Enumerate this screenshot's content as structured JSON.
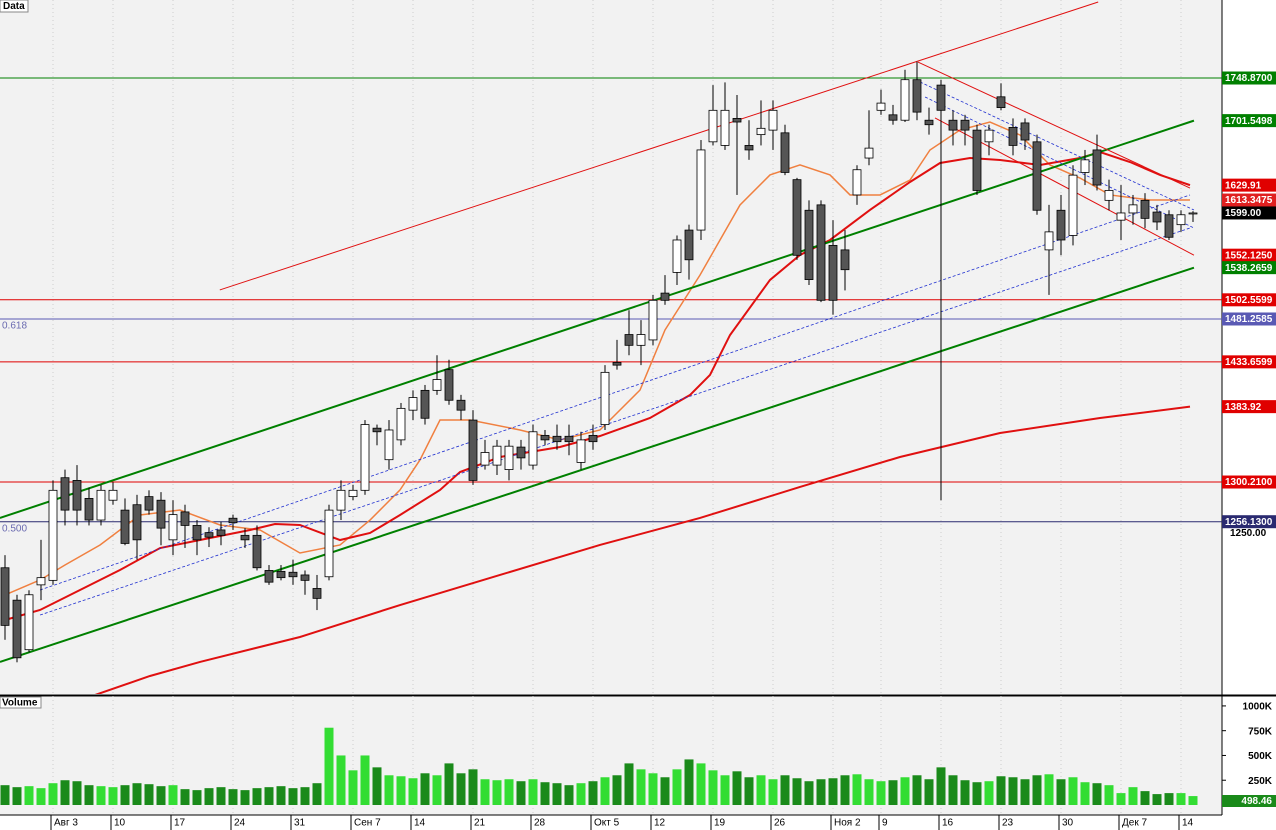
{
  "chart_data": [
    {
      "type": "candlestick",
      "title": "Data",
      "xlim": [
        -0.4167,
        101.4167
      ],
      "ylim": [
        1064.8,
        1835.5
      ],
      "yticks": [
        {
          "value": 1250,
          "label": "1250.00"
        }
      ],
      "up_color": "#ffffff",
      "down_color": "#555555",
      "open": [
        1205,
        1169,
        1114,
        1186,
        1191,
        1305,
        1302,
        1282,
        1258,
        1280,
        1269,
        1275,
        1284,
        1280,
        1236,
        1267,
        1252,
        1244,
        1247,
        1260,
        1241,
        1241,
        1202,
        1201,
        1200,
        1197,
        1182,
        1195,
        1269,
        1284,
        1291,
        1360,
        1325,
        1347,
        1380,
        1402,
        1402,
        1425,
        1391,
        1369,
        1319,
        1319,
        1314,
        1339,
        1319,
        1352,
        1351,
        1351,
        1322,
        1352,
        1364,
        1433,
        1464,
        1452,
        1458,
        1510,
        1533,
        1580,
        1580,
        1678,
        1674,
        1704,
        1674,
        1686,
        1691,
        1688,
        1636,
        1602,
        1608,
        1563,
        1558,
        1619,
        1660,
        1713,
        1708,
        1702,
        1747,
        1702,
        1741,
        1702,
        1702,
        1691,
        1678,
        1728,
        1694,
        1699,
        1678,
        1558,
        1602,
        1574,
        1644,
        1669,
        1613,
        1591,
        1599,
        1613,
        1600,
        1597,
        1586,
        1598
      ],
      "high": [
        1219,
        1175,
        1180,
        1236,
        1302,
        1314,
        1319,
        1294,
        1297,
        1300,
        1282,
        1286,
        1291,
        1289,
        1280,
        1275,
        1258,
        1250,
        1256,
        1264,
        1249,
        1252,
        1208,
        1208,
        1214,
        1202,
        1197,
        1275,
        1302,
        1297,
        1369,
        1364,
        1369,
        1388,
        1402,
        1408,
        1441,
        1436,
        1397,
        1380,
        1347,
        1347,
        1347,
        1347,
        1364,
        1358,
        1364,
        1364,
        1356,
        1364,
        1430,
        1458,
        1491,
        1480,
        1508,
        1530,
        1574,
        1586,
        1680,
        1741,
        1744,
        1730,
        1702,
        1724,
        1724,
        1697,
        1638,
        1613,
        1613,
        1591,
        1580,
        1652,
        1713,
        1736,
        1719,
        1758,
        1767,
        1716,
        1747,
        1713,
        1708,
        1697,
        1697,
        1743,
        1704,
        1704,
        1686,
        1608,
        1619,
        1652,
        1669,
        1686,
        1636,
        1630,
        1619,
        1621,
        1608,
        1602,
        1602,
        1601
      ],
      "low": [
        1125,
        1100,
        1111,
        1169,
        1186,
        1252,
        1252,
        1252,
        1252,
        1275,
        1230,
        1214,
        1264,
        1230,
        1219,
        1227,
        1219,
        1228,
        1230,
        1247,
        1227,
        1202,
        1186,
        1191,
        1186,
        1175,
        1158,
        1191,
        1258,
        1280,
        1286,
        1341,
        1314,
        1341,
        1369,
        1364,
        1397,
        1386,
        1369,
        1297,
        1314,
        1308,
        1302,
        1314,
        1314,
        1341,
        1336,
        1330,
        1314,
        1336,
        1358,
        1425,
        1441,
        1430,
        1452,
        1497,
        1519,
        1525,
        1569,
        1674,
        1669,
        1619,
        1658,
        1674,
        1669,
        1641,
        1547,
        1519,
        1500,
        1486,
        1513,
        1608,
        1652,
        1708,
        1697,
        1700,
        1702,
        1686,
        1280,
        1674,
        1674,
        1619,
        1663,
        1713,
        1663,
        1669,
        1597,
        1508,
        1552,
        1563,
        1630,
        1624,
        1602,
        1569,
        1586,
        1582,
        1580,
        1569,
        1578,
        1589
      ],
      "close": [
        1141,
        1105,
        1175,
        1194,
        1291,
        1269,
        1269,
        1258,
        1291,
        1291,
        1232,
        1236,
        1269,
        1249,
        1264,
        1252,
        1236,
        1239,
        1241,
        1255,
        1236,
        1205,
        1189,
        1194,
        1195,
        1191,
        1171,
        1269,
        1291,
        1291,
        1364,
        1356,
        1358,
        1382,
        1394,
        1371,
        1414,
        1391,
        1380,
        1302,
        1333,
        1340,
        1340,
        1327,
        1356,
        1347,
        1345,
        1345,
        1347,
        1345,
        1422,
        1430,
        1452,
        1464,
        1502,
        1502,
        1569,
        1547,
        1669,
        1713,
        1713,
        1700,
        1669,
        1693,
        1713,
        1644,
        1552,
        1525,
        1502,
        1502,
        1536,
        1647,
        1671,
        1721,
        1702,
        1747,
        1711,
        1697,
        1713,
        1691,
        1691,
        1624,
        1691,
        1716,
        1674,
        1680,
        1602,
        1578,
        1569,
        1641,
        1658,
        1630,
        1624,
        1599,
        1608,
        1593,
        1589,
        1572,
        1597,
        1599
      ],
      "lines": [
        {
          "color": "#f08040",
          "width": 1.5,
          "x": [
            0,
            2.92,
            5,
            7.92,
            11.25,
            14.58,
            17.92,
            21.25,
            24.58,
            27.92,
            30.42,
            32.92,
            34.58,
            36.25,
            38.75,
            42.92,
            46.25,
            49.58,
            52.92,
            55,
            57.92,
            61.25,
            63.75,
            66.25,
            68.75,
            70.42,
            72.92,
            75.42,
            77.08,
            79.58,
            82.08,
            84.58,
            87.08,
            89.58,
            92.08,
            95.42,
            98.75
          ],
          "values": [
            1174.8,
            1191.4,
            1208.1,
            1230.3,
            1263.6,
            1269.1,
            1252.5,
            1246.9,
            1221.4,
            1230.3,
            1258.0,
            1291.4,
            1324.7,
            1369.1,
            1369.1,
            1358.0,
            1346.9,
            1358.0,
            1402.4,
            1469.1,
            1530.1,
            1607.9,
            1641.2,
            1652.3,
            1641.2,
            1619.0,
            1619.0,
            1635.6,
            1668.9,
            1691.1,
            1700.0,
            1685.6,
            1652.3,
            1637.8,
            1619.0,
            1613.4,
            1613.3475
          ]
        },
        {
          "color": "#e01010",
          "width": 2,
          "x": [
            0,
            2.92,
            6.25,
            9.58,
            12.92,
            16.25,
            20.42,
            22.5,
            24.58,
            27.92,
            30.42,
            32.92,
            36.25,
            37.92,
            41.25,
            46.25,
            49.58,
            53.75,
            57.08,
            58.75,
            60.42,
            63.75,
            66.25,
            68.75,
            72.08,
            75.42,
            77.92,
            80.42,
            82.92,
            86.25,
            89.58,
            91.25,
            93.75,
            96.25,
            98.75
          ],
          "values": [
            1147.0,
            1158.1,
            1180.3,
            1202.5,
            1226.9,
            1235.8,
            1246.9,
            1253.6,
            1252.5,
            1235.8,
            1243.6,
            1263.6,
            1291.4,
            1311.3,
            1328.0,
            1339.1,
            1351.3,
            1371.3,
            1396.8,
            1419.1,
            1463.5,
            1524.6,
            1552.3,
            1569.0,
            1602.3,
            1633.4,
            1654.5,
            1660.0,
            1657.8,
            1652.3,
            1660.0,
            1666.7,
            1655.6,
            1641.2,
            1629.91
          ]
        },
        {
          "color": "#e01010",
          "width": 2,
          "x": [
            7.5,
            12.08,
            16.25,
            24.58,
            32.92,
            41.25,
            49.58,
            57.92,
            66.25,
            74.58,
            82.92,
            91.25,
            98.75
          ],
          "values": [
            1063.7,
            1084.8,
            1100.4,
            1128.1,
            1163.6,
            1197.0,
            1230.3,
            1260.3,
            1294.7,
            1328.0,
            1354.6,
            1371.3,
            1383.92
          ]
        },
        {
          "color": "#e01010",
          "width": 1,
          "x": [
            17.9,
            91.1
          ],
          "values": [
            1513.5,
            1833.3
          ]
        },
        {
          "color": "#008000",
          "width": 2,
          "x": [
            -0.42,
            99.08
          ],
          "values": [
            1260.3,
            1701.5498
          ]
        },
        {
          "color": "#008000",
          "width": 2,
          "x": [
            -0.42,
            99.08
          ],
          "values": [
            1100.4,
            1538.2659
          ]
        },
        {
          "color": "#2030d0",
          "width": 0.8,
          "dash": true,
          "x": [
            2.92,
            98.75
          ],
          "values": [
            1180.3,
            1619.0
          ]
        },
        {
          "color": "#2030d0",
          "width": 0.8,
          "dash": true,
          "x": [
            2.92,
            98.75
          ],
          "values": [
            1152.5,
            1582.3
          ]
        },
        {
          "color": "#e01010",
          "width": 1,
          "x": [
            76.08,
            98.75
          ],
          "values": [
            1766.6,
            1626.7
          ]
        },
        {
          "color": "#e01010",
          "width": 1,
          "x": [
            77.5,
            99.08
          ],
          "values": [
            1704.5,
            1552.125
          ]
        },
        {
          "color": "#2030d0",
          "width": 0.8,
          "dash": true,
          "x": [
            76.25,
            99.08
          ],
          "values": [
            1744.4,
            1602.3
          ]
        },
        {
          "color": "#2030d0",
          "width": 0.8,
          "dash": true,
          "x": [
            76.67,
            99.08
          ],
          "values": [
            1727.8,
            1582.3
          ]
        }
      ],
      "hlines": [
        {
          "value": 1748.87,
          "label": "1748.8700",
          "color": "#008000"
        },
        {
          "value": 1502.5599,
          "label": "1502.5599",
          "color": "#e00000"
        },
        {
          "value": 1481.2585,
          "label": "1481.2585",
          "color": "#5a5ab4",
          "fib": "0.618"
        },
        {
          "value": 1433.6599,
          "label": "1433.6599",
          "color": "#e00000"
        },
        {
          "value": 1300.21,
          "label": "1300.2100",
          "color": "#e00000"
        },
        {
          "value": 1256.13,
          "label": "1256.1300",
          "color": "#2a2a70",
          "fib": "0.500"
        }
      ],
      "tags": [
        {
          "value": 1701.5498,
          "label": "1701.5498",
          "color": "#008000"
        },
        {
          "value": 1629.91,
          "label": "1629.91",
          "color": "#e00000"
        },
        {
          "value": 1613.3475,
          "label": "1613.3475",
          "color": "#e02020"
        },
        {
          "value": 1599,
          "label": "1599.00",
          "color": "#000000"
        },
        {
          "value": 1552.125,
          "label": "1552.1250",
          "color": "#e00000"
        },
        {
          "value": 1538.2659,
          "label": "1538.2659",
          "color": "#008000"
        },
        {
          "value": 1383.92,
          "label": "1383.92",
          "color": "#e00000"
        }
      ]
    },
    {
      "type": "bar",
      "title": "Volume",
      "ylim": [
        0,
        1090000
      ],
      "yticks": [
        {
          "value": 250000,
          "label": "250K"
        },
        {
          "value": 500000,
          "label": "500K"
        },
        {
          "value": 750000,
          "label": "750K"
        },
        {
          "value": 1000000,
          "label": "1000K"
        }
      ],
      "up_color": "#33dd33",
      "down_color": "#1a8a1a",
      "last_label": "498.46",
      "categories": [
        null,
        null,
        null,
        null,
        "Авг 3",
        null,
        null,
        null,
        null,
        "10",
        null,
        null,
        null,
        null,
        "17",
        null,
        null,
        null,
        null,
        "24",
        null,
        null,
        null,
        null,
        "31",
        null,
        null,
        null,
        null,
        "Сен 7",
        null,
        null,
        null,
        null,
        "14",
        null,
        null,
        null,
        null,
        "21",
        null,
        null,
        null,
        null,
        "28",
        null,
        null,
        null,
        null,
        "Окт 5",
        null,
        null,
        null,
        null,
        "12",
        null,
        null,
        null,
        null,
        "19",
        null,
        null,
        null,
        null,
        "26",
        null,
        null,
        null,
        null,
        "Ноя 2",
        null,
        null,
        null,
        "9",
        null,
        null,
        null,
        null,
        "16",
        null,
        null,
        null,
        null,
        "23",
        null,
        null,
        null,
        null,
        "30",
        null,
        null,
        null,
        null,
        "Дек 7",
        null,
        null,
        null,
        null,
        "14",
        null
      ],
      "values": [
        200000,
        180000,
        190000,
        170000,
        220000,
        250000,
        240000,
        200000,
        190000,
        180000,
        200000,
        220000,
        210000,
        190000,
        200000,
        160000,
        150000,
        170000,
        180000,
        160000,
        150000,
        170000,
        180000,
        190000,
        170000,
        180000,
        220000,
        780000,
        500000,
        350000,
        500000,
        380000,
        300000,
        290000,
        270000,
        320000,
        300000,
        420000,
        320000,
        360000,
        260000,
        250000,
        260000,
        240000,
        260000,
        230000,
        220000,
        200000,
        220000,
        240000,
        280000,
        300000,
        420000,
        360000,
        320000,
        280000,
        360000,
        460000,
        420000,
        350000,
        300000,
        340000,
        280000,
        300000,
        260000,
        300000,
        270000,
        240000,
        260000,
        270000,
        300000,
        310000,
        260000,
        240000,
        250000,
        280000,
        300000,
        260000,
        380000,
        300000,
        250000,
        230000,
        240000,
        290000,
        280000,
        260000,
        300000,
        310000,
        260000,
        280000,
        230000,
        220000,
        200000,
        120000,
        180000,
        140000,
        110000,
        120000,
        120000,
        90000
      ]
    }
  ]
}
